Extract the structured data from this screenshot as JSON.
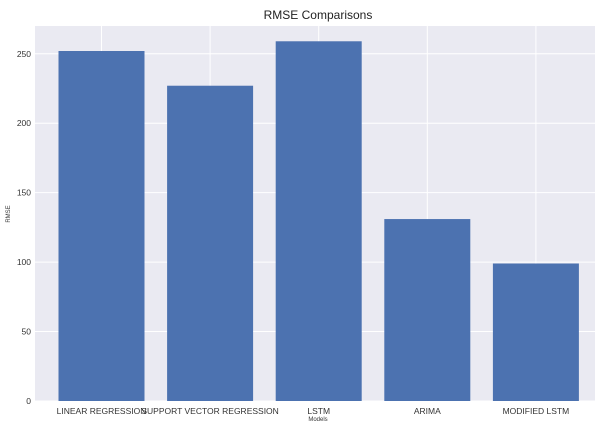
{
  "chart_data": {
    "type": "bar",
    "title": "RMSE Comparisons",
    "xlabel": "Models",
    "ylabel": "RMSE",
    "categories": [
      "LINEAR REGRESSION",
      "SUPPORT VECTOR REGRESSION",
      "LSTM",
      "ARIMA",
      "MODIFIED LSTM"
    ],
    "values": [
      252,
      227,
      259,
      131,
      99
    ],
    "ylim": [
      0,
      270
    ],
    "yticks": [
      0,
      50,
      100,
      150,
      200,
      250
    ],
    "grid": true,
    "colors": {
      "bar": "#4c72b0",
      "plot_bg": "#eaeaf2",
      "grid": "#ffffff"
    }
  }
}
